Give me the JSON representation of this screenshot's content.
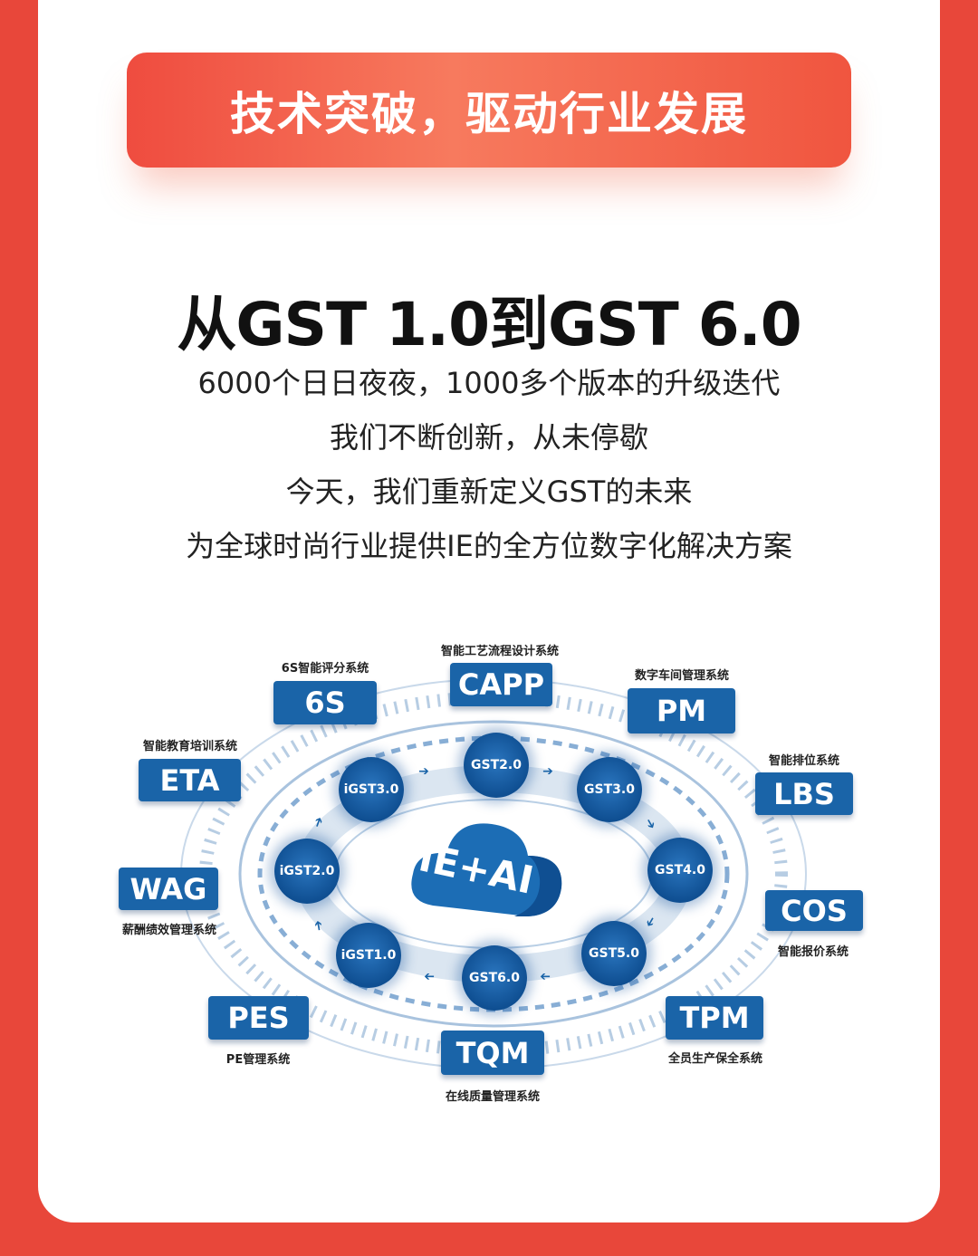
{
  "banner": {
    "title": "技术突破，驱动行业发展"
  },
  "headline": "从GST 1.0到GST 6.0",
  "lines": [
    "6000个日日夜夜，1000多个版本的升级迭代",
    "我们不断创新，从未停歇",
    "今天，我们重新定义GST的未来",
    "为全球时尚行业提供IE的全方位数字化解决方案"
  ],
  "diagram": {
    "center": "IE+AI",
    "nodes": [
      "GST2.0",
      "GST3.0",
      "GST4.0",
      "GST5.0",
      "GST6.0",
      "iGST1.0",
      "iGST2.0",
      "iGST3.0"
    ],
    "modules": [
      {
        "name": "6S",
        "desc": "6S智能评分系统"
      },
      {
        "name": "CAPP",
        "desc": "智能工艺流程设计系统"
      },
      {
        "name": "PM",
        "desc": "数字车间管理系统"
      },
      {
        "name": "ETA",
        "desc": "智能教育培训系统"
      },
      {
        "name": "LBS",
        "desc": "智能排位系统"
      },
      {
        "name": "WAG",
        "desc": "薪酬绩效管理系统"
      },
      {
        "name": "COS",
        "desc": "智能报价系统"
      },
      {
        "name": "PES",
        "desc": "PE管理系统"
      },
      {
        "name": "TPM",
        "desc": "全员生产保全系统"
      },
      {
        "name": "TQM",
        "desc": "在线质量管理系统"
      }
    ],
    "colors": {
      "module": "#1a64a8",
      "accent": "#e8473a"
    }
  }
}
